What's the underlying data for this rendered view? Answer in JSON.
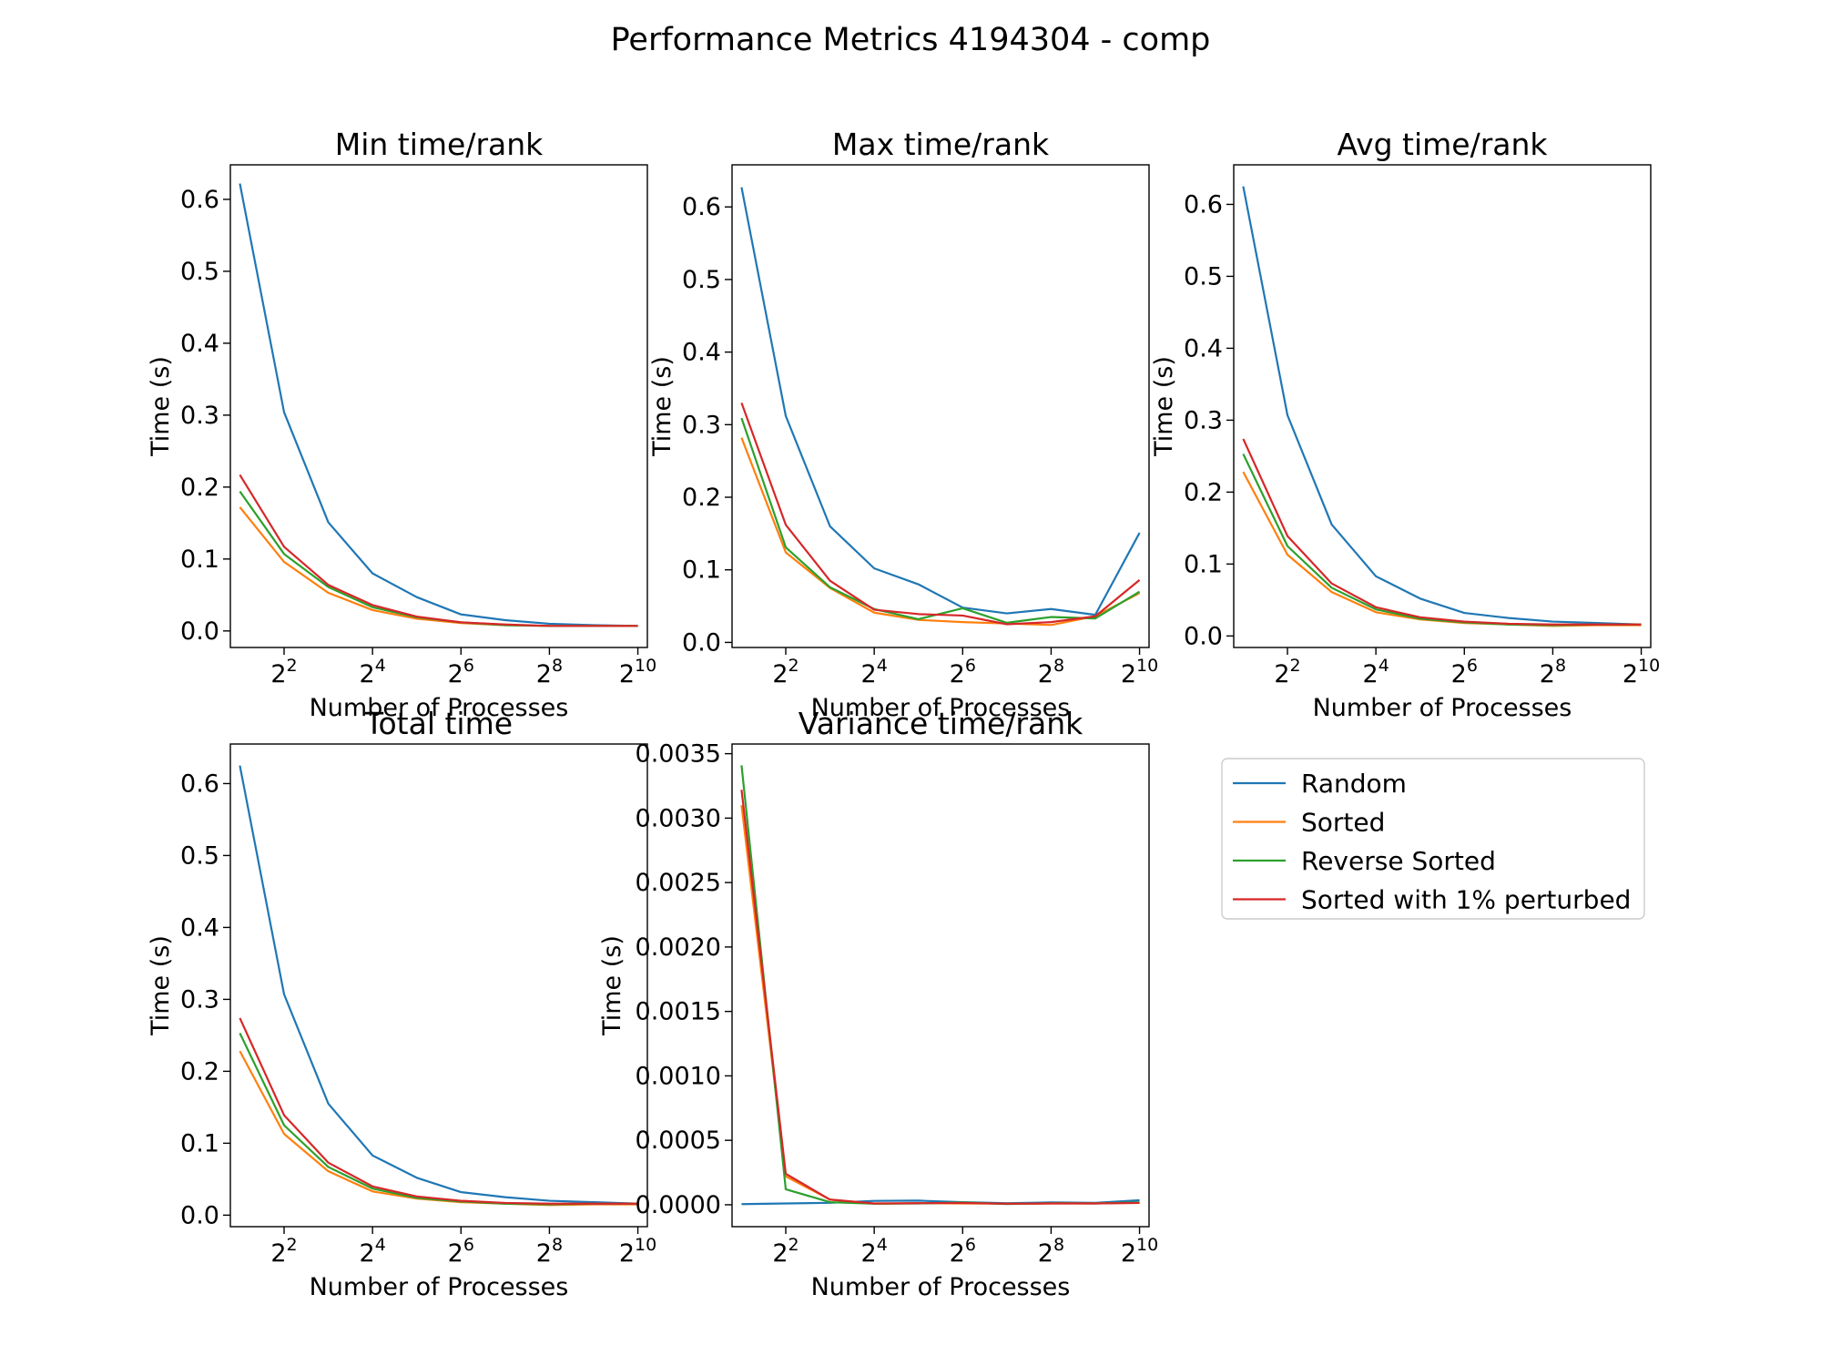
{
  "title": "Performance Metrics 4194304 - comp",
  "series_styles": [
    {
      "name": "Random",
      "color": "#1f77b4"
    },
    {
      "name": "Sorted",
      "color": "#ff7f0e"
    },
    {
      "name": "Reverse Sorted",
      "color": "#2ca02c"
    },
    {
      "name": "Sorted with 1% perturbed",
      "color": "#d62728"
    }
  ],
  "chart_data": [
    {
      "type": "line",
      "title": "Min time/rank",
      "xlabel": "Number of Processes",
      "ylabel": "Time (s)",
      "xscale": "log2",
      "x": [
        2,
        4,
        8,
        16,
        32,
        64,
        128,
        256,
        512,
        1024
      ],
      "xticks": [
        {
          "base": "2",
          "exp": "2"
        },
        {
          "base": "2",
          "exp": "4"
        },
        {
          "base": "2",
          "exp": "6"
        },
        {
          "base": "2",
          "exp": "8"
        },
        {
          "base": "2",
          "exp": "10"
        }
      ],
      "xtick_values": [
        4,
        16,
        64,
        256,
        1024
      ],
      "yticks": [
        "0.0",
        "0.1",
        "0.2",
        "0.3",
        "0.4",
        "0.5",
        "0.6"
      ],
      "ylim": [
        -0.023,
        0.648
      ],
      "series": [
        {
          "name": "Random",
          "values": [
            0.622,
            0.304,
            0.151,
            0.08,
            0.047,
            0.023,
            0.015,
            0.01,
            0.008,
            0.007
          ]
        },
        {
          "name": "Sorted",
          "values": [
            0.172,
            0.096,
            0.053,
            0.029,
            0.017,
            0.011,
            0.008,
            0.007,
            0.007,
            0.007
          ]
        },
        {
          "name": "Reverse Sorted",
          "values": [
            0.194,
            0.107,
            0.061,
            0.033,
            0.019,
            0.012,
            0.008,
            0.007,
            0.007,
            0.007
          ]
        },
        {
          "name": "Sorted with 1% perturbed",
          "values": [
            0.217,
            0.117,
            0.064,
            0.036,
            0.02,
            0.012,
            0.009,
            0.007,
            0.007,
            0.007
          ]
        }
      ]
    },
    {
      "type": "line",
      "title": "Max time/rank",
      "xlabel": "Number of Processes",
      "ylabel": "Time (s)",
      "xscale": "log2",
      "x": [
        2,
        4,
        8,
        16,
        32,
        64,
        128,
        256,
        512,
        1024
      ],
      "xticks": [
        {
          "base": "2",
          "exp": "2"
        },
        {
          "base": "2",
          "exp": "4"
        },
        {
          "base": "2",
          "exp": "6"
        },
        {
          "base": "2",
          "exp": "8"
        },
        {
          "base": "2",
          "exp": "10"
        }
      ],
      "xtick_values": [
        4,
        16,
        64,
        256,
        1024
      ],
      "yticks": [
        "0.0",
        "0.1",
        "0.2",
        "0.3",
        "0.4",
        "0.5",
        "0.6"
      ],
      "ylim": [
        -0.007,
        0.658
      ],
      "series": [
        {
          "name": "Random",
          "values": [
            0.627,
            0.312,
            0.16,
            0.102,
            0.08,
            0.048,
            0.04,
            0.046,
            0.038,
            0.151
          ]
        },
        {
          "name": "Sorted",
          "values": [
            0.282,
            0.124,
            0.075,
            0.041,
            0.031,
            0.028,
            0.026,
            0.024,
            0.036,
            0.068
          ]
        },
        {
          "name": "Reverse Sorted",
          "values": [
            0.309,
            0.131,
            0.076,
            0.046,
            0.032,
            0.047,
            0.027,
            0.035,
            0.033,
            0.07
          ]
        },
        {
          "name": "Sorted with 1% perturbed",
          "values": [
            0.33,
            0.162,
            0.085,
            0.045,
            0.039,
            0.037,
            0.025,
            0.028,
            0.036,
            0.086
          ]
        }
      ]
    },
    {
      "type": "line",
      "title": "Avg time/rank",
      "xlabel": "Number of Processes",
      "ylabel": "Time (s)",
      "xscale": "log2",
      "x": [
        2,
        4,
        8,
        16,
        32,
        64,
        128,
        256,
        512,
        1024
      ],
      "xticks": [
        {
          "base": "2",
          "exp": "2"
        },
        {
          "base": "2",
          "exp": "4"
        },
        {
          "base": "2",
          "exp": "6"
        },
        {
          "base": "2",
          "exp": "8"
        },
        {
          "base": "2",
          "exp": "10"
        }
      ],
      "xtick_values": [
        4,
        16,
        64,
        256,
        1024
      ],
      "yticks": [
        "0.0",
        "0.1",
        "0.2",
        "0.3",
        "0.4",
        "0.5",
        "0.6"
      ],
      "ylim": [
        -0.016,
        0.655
      ],
      "series": [
        {
          "name": "Random",
          "values": [
            0.625,
            0.307,
            0.155,
            0.083,
            0.052,
            0.032,
            0.025,
            0.02,
            0.018,
            0.016
          ]
        },
        {
          "name": "Sorted",
          "values": [
            0.228,
            0.113,
            0.061,
            0.033,
            0.023,
            0.018,
            0.016,
            0.014,
            0.015,
            0.015
          ]
        },
        {
          "name": "Reverse Sorted",
          "values": [
            0.253,
            0.125,
            0.067,
            0.037,
            0.024,
            0.019,
            0.016,
            0.015,
            0.016,
            0.016
          ]
        },
        {
          "name": "Sorted with 1% perturbed",
          "values": [
            0.274,
            0.139,
            0.073,
            0.04,
            0.026,
            0.02,
            0.017,
            0.016,
            0.016,
            0.016
          ]
        }
      ]
    },
    {
      "type": "line",
      "title": "Total time",
      "xlabel": "Number of Processes",
      "ylabel": "Time (s)",
      "xscale": "log2",
      "x": [
        2,
        4,
        8,
        16,
        32,
        64,
        128,
        256,
        512,
        1024
      ],
      "xticks": [
        {
          "base": "2",
          "exp": "2"
        },
        {
          "base": "2",
          "exp": "4"
        },
        {
          "base": "2",
          "exp": "6"
        },
        {
          "base": "2",
          "exp": "8"
        },
        {
          "base": "2",
          "exp": "10"
        }
      ],
      "xtick_values": [
        4,
        16,
        64,
        256,
        1024
      ],
      "yticks": [
        "0.0",
        "0.1",
        "0.2",
        "0.3",
        "0.4",
        "0.5",
        "0.6"
      ],
      "ylim": [
        -0.016,
        0.655
      ],
      "series": [
        {
          "name": "Random",
          "values": [
            0.625,
            0.307,
            0.155,
            0.083,
            0.052,
            0.032,
            0.025,
            0.02,
            0.018,
            0.016
          ]
        },
        {
          "name": "Sorted",
          "values": [
            0.228,
            0.113,
            0.061,
            0.033,
            0.023,
            0.018,
            0.016,
            0.014,
            0.015,
            0.015
          ]
        },
        {
          "name": "Reverse Sorted",
          "values": [
            0.253,
            0.125,
            0.067,
            0.037,
            0.024,
            0.019,
            0.016,
            0.015,
            0.016,
            0.016
          ]
        },
        {
          "name": "Sorted with 1% perturbed",
          "values": [
            0.274,
            0.139,
            0.073,
            0.04,
            0.026,
            0.02,
            0.017,
            0.016,
            0.016,
            0.016
          ]
        }
      ]
    },
    {
      "type": "line",
      "title": "Variance time/rank",
      "xlabel": "Number of Processes",
      "ylabel": "Time (s)",
      "xscale": "log2",
      "x": [
        2,
        4,
        8,
        16,
        32,
        64,
        128,
        256,
        512,
        1024
      ],
      "xticks": [
        {
          "base": "2",
          "exp": "2"
        },
        {
          "base": "2",
          "exp": "4"
        },
        {
          "base": "2",
          "exp": "6"
        },
        {
          "base": "2",
          "exp": "8"
        },
        {
          "base": "2",
          "exp": "10"
        }
      ],
      "xtick_values": [
        4,
        16,
        64,
        256,
        1024
      ],
      "yticks": [
        "0.0000",
        "0.0005",
        "0.0010",
        "0.0015",
        "0.0020",
        "0.0025",
        "0.0030",
        "0.0035"
      ],
      "ylim": [
        -0.00017,
        0.003575
      ],
      "series": [
        {
          "name": "Random",
          "values": [
            5e-06,
            1e-05,
            1.5e-05,
            3e-05,
            3.2e-05,
            2e-05,
            1.2e-05,
            1.8e-05,
            1.5e-05,
            3.5e-05
          ]
        },
        {
          "name": "Sorted",
          "values": [
            0.0031,
            0.00022,
            4e-05,
            8e-06,
            1.2e-05,
            1e-05,
            8e-06,
            1e-05,
            1e-05,
            1.5e-05
          ]
        },
        {
          "name": "Reverse Sorted",
          "values": [
            0.00341,
            0.00012,
            2e-05,
            8e-06,
            1e-05,
            1.8e-05,
            6e-06,
            1.2e-05,
            1e-05,
            1.8e-05
          ]
        },
        {
          "name": "Sorted with 1% perturbed",
          "values": [
            0.00322,
            0.00024,
            4e-05,
            1e-05,
            1.2e-05,
            1.4e-05,
            8e-06,
            1e-05,
            1e-05,
            1.4e-05
          ]
        }
      ]
    }
  ]
}
